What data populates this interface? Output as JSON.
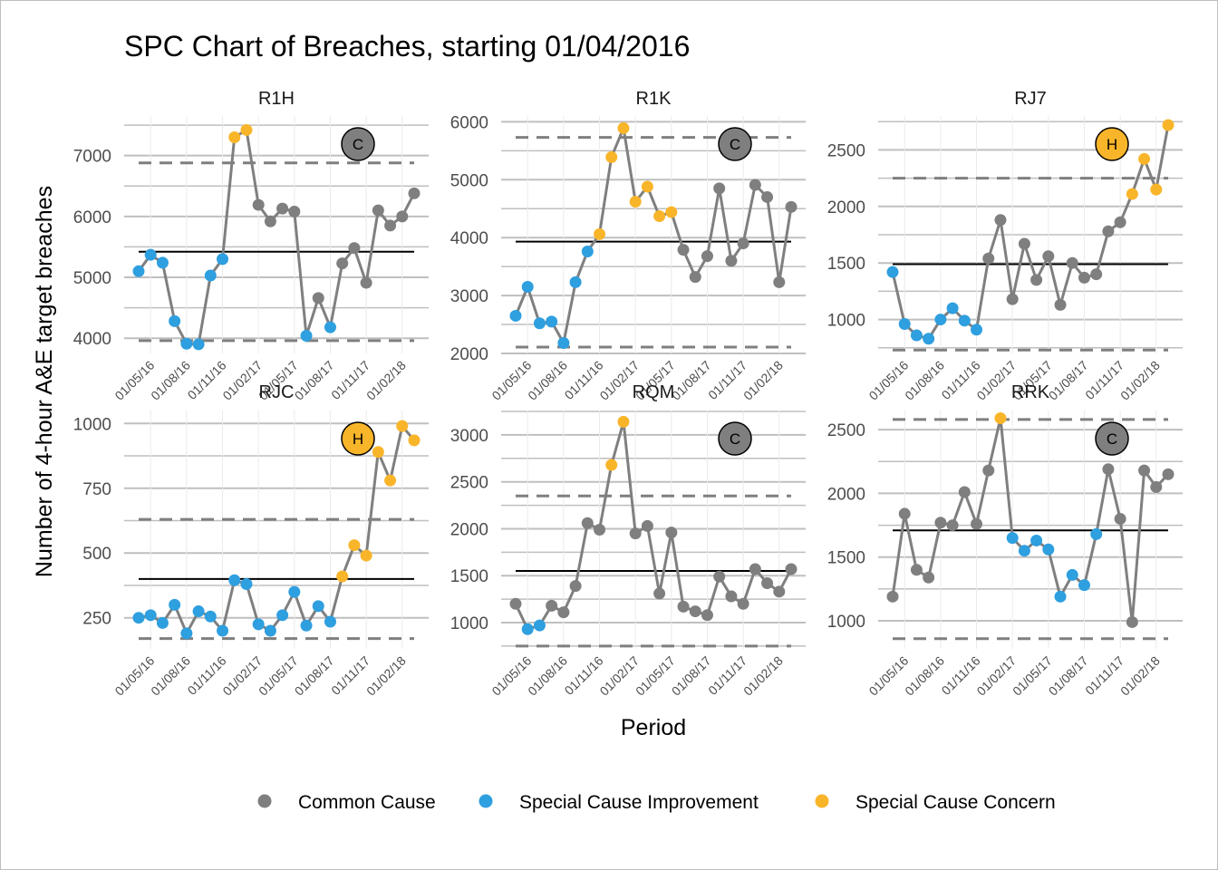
{
  "title": "SPC Chart of Breaches, starting 01/04/2016",
  "y_axis_title": "Number of 4-hour A&E target breaches",
  "x_axis_title": "Period",
  "legend": [
    {
      "label": "Common Cause",
      "color": "#7f7f7f"
    },
    {
      "label": "Special Cause Improvement",
      "color": "#2e9fdf"
    },
    {
      "label": "Special Cause Concern",
      "color": "#f9b52a"
    }
  ],
  "colors": {
    "C": "#7f7f7f",
    "I": "#2e9fdf",
    "K": "#f9b52a",
    "line": "#7f7f7f",
    "mean": "#000000",
    "limit": "#7f7f7f",
    "grid": "#bfbfbf"
  },
  "chart_data": [
    {
      "type": "line",
      "name": "R1H",
      "badge": "C",
      "badge_color": "#7f7f7f",
      "ylim": [
        3750,
        7650
      ],
      "yticks": [
        4000,
        5000,
        6000,
        7000
      ],
      "x": [
        "01/04/16",
        "01/05/16",
        "01/06/16",
        "01/07/16",
        "01/08/16",
        "01/09/16",
        "01/10/16",
        "01/11/16",
        "01/12/16",
        "01/01/17",
        "01/02/17",
        "01/03/17",
        "01/04/17",
        "01/05/17",
        "01/06/17",
        "01/07/17",
        "01/08/17",
        "01/09/17",
        "01/10/17",
        "01/11/17",
        "01/12/17",
        "01/01/18",
        "01/02/18",
        "01/03/18"
      ],
      "xticks": [
        "01/05/16",
        "01/08/16",
        "01/11/16",
        "01/02/17",
        "01/05/17",
        "01/08/17",
        "01/11/17",
        "01/02/18"
      ],
      "values": [
        5100,
        5370,
        5240,
        4280,
        3910,
        3900,
        5030,
        5300,
        7300,
        7420,
        6190,
        5920,
        6130,
        6080,
        4040,
        4660,
        4180,
        5230,
        5480,
        4910,
        6100,
        5850,
        6000,
        6380
      ],
      "status": [
        "I",
        "I",
        "I",
        "I",
        "I",
        "I",
        "I",
        "I",
        "K",
        "K",
        "C",
        "C",
        "C",
        "C",
        "I",
        "C",
        "I",
        "C",
        "C",
        "C",
        "C",
        "C",
        "C",
        "C"
      ],
      "mean": 5420,
      "ucl": 6880,
      "lcl": 3960
    },
    {
      "type": "line",
      "name": "R1K",
      "badge": "C",
      "badge_color": "#7f7f7f",
      "ylim": [
        2000,
        6100
      ],
      "yticks": [
        2000,
        3000,
        4000,
        5000,
        6000
      ],
      "x": [
        "01/04/16",
        "01/05/16",
        "01/06/16",
        "01/07/16",
        "01/08/16",
        "01/09/16",
        "01/10/16",
        "01/11/16",
        "01/12/16",
        "01/01/17",
        "01/02/17",
        "01/03/17",
        "01/04/17",
        "01/05/17",
        "01/06/17",
        "01/07/17",
        "01/08/17",
        "01/09/17",
        "01/10/17",
        "01/11/17",
        "01/12/17",
        "01/01/18",
        "01/02/18",
        "01/03/18"
      ],
      "xticks": [
        "01/05/16",
        "01/08/16",
        "01/11/16",
        "01/02/17",
        "01/05/17",
        "01/08/17",
        "01/11/17",
        "01/02/18"
      ],
      "values": [
        2650,
        3150,
        2520,
        2550,
        2180,
        3230,
        3760,
        4060,
        5390,
        5890,
        4620,
        4880,
        4370,
        4440,
        3790,
        3320,
        3680,
        4850,
        3600,
        3900,
        4910,
        4700,
        3230,
        4530
      ],
      "status": [
        "I",
        "I",
        "I",
        "I",
        "I",
        "I",
        "I",
        "K",
        "K",
        "K",
        "K",
        "K",
        "K",
        "K",
        "C",
        "C",
        "C",
        "C",
        "C",
        "C",
        "C",
        "C",
        "C",
        "C"
      ],
      "mean": 3930,
      "ucl": 5730,
      "lcl": 2110
    },
    {
      "type": "line",
      "name": "RJ7",
      "badge": "H",
      "badge_color": "#f9b52a",
      "ylim": [
        700,
        2800
      ],
      "yticks": [
        1000,
        1500,
        2000,
        2500
      ],
      "x": [
        "01/04/16",
        "01/05/16",
        "01/06/16",
        "01/07/16",
        "01/08/16",
        "01/09/16",
        "01/10/16",
        "01/11/16",
        "01/12/16",
        "01/01/17",
        "01/02/17",
        "01/03/17",
        "01/04/17",
        "01/05/17",
        "01/06/17",
        "01/07/17",
        "01/08/17",
        "01/09/17",
        "01/10/17",
        "01/11/17",
        "01/12/17",
        "01/01/18",
        "01/02/18",
        "01/03/18"
      ],
      "xticks": [
        "01/05/16",
        "01/08/16",
        "01/11/16",
        "01/02/17",
        "01/05/17",
        "01/08/17",
        "01/11/17",
        "01/02/18"
      ],
      "values": [
        1420,
        960,
        860,
        830,
        1000,
        1100,
        990,
        910,
        1540,
        1880,
        1180,
        1670,
        1350,
        1560,
        1130,
        1500,
        1370,
        1400,
        1780,
        1860,
        2110,
        2420,
        2150,
        2720
      ],
      "status": [
        "I",
        "I",
        "I",
        "I",
        "I",
        "I",
        "I",
        "I",
        "C",
        "C",
        "C",
        "C",
        "C",
        "C",
        "C",
        "C",
        "C",
        "C",
        "C",
        "C",
        "K",
        "K",
        "K",
        "K"
      ],
      "mean": 1490,
      "ucl": 2250,
      "lcl": 730
    },
    {
      "type": "line",
      "name": "RJC",
      "badge": "H",
      "badge_color": "#f9b52a",
      "ylim": [
        130,
        1050
      ],
      "yticks": [
        250,
        500,
        750,
        1000
      ],
      "x": [
        "01/04/16",
        "01/05/16",
        "01/06/16",
        "01/07/16",
        "01/08/16",
        "01/09/16",
        "01/10/16",
        "01/11/16",
        "01/12/16",
        "01/01/17",
        "01/02/17",
        "01/03/17",
        "01/04/17",
        "01/05/17",
        "01/06/17",
        "01/07/17",
        "01/08/17",
        "01/09/17",
        "01/10/17",
        "01/11/17",
        "01/12/17",
        "01/01/18",
        "01/02/18",
        "01/03/18"
      ],
      "xticks": [
        "01/05/16",
        "01/08/16",
        "01/11/16",
        "01/02/17",
        "01/05/17",
        "01/08/17",
        "01/11/17",
        "01/02/18"
      ],
      "values": [
        250,
        260,
        230,
        300,
        190,
        275,
        255,
        200,
        395,
        380,
        225,
        200,
        260,
        350,
        220,
        295,
        235,
        410,
        530,
        490,
        890,
        780,
        990,
        935
      ],
      "status": [
        "I",
        "I",
        "I",
        "I",
        "I",
        "I",
        "I",
        "I",
        "I",
        "I",
        "I",
        "I",
        "I",
        "I",
        "I",
        "I",
        "I",
        "K",
        "K",
        "K",
        "K",
        "K",
        "K",
        "K"
      ],
      "mean": 400,
      "ucl": 630,
      "lcl": 170
    },
    {
      "type": "line",
      "name": "RQM",
      "badge": "C",
      "badge_color": "#7f7f7f",
      "ylim": [
        720,
        3260
      ],
      "yticks": [
        1000,
        1500,
        2000,
        2500,
        3000
      ],
      "x": [
        "01/04/16",
        "01/05/16",
        "01/06/16",
        "01/07/16",
        "01/08/16",
        "01/09/16",
        "01/10/16",
        "01/11/16",
        "01/12/16",
        "01/01/17",
        "01/02/17",
        "01/03/17",
        "01/04/17",
        "01/05/17",
        "01/06/17",
        "01/07/17",
        "01/08/17",
        "01/09/17",
        "01/10/17",
        "01/11/17",
        "01/12/17",
        "01/01/18",
        "01/02/18",
        "01/03/18"
      ],
      "xticks": [
        "01/05/16",
        "01/08/16",
        "01/11/16",
        "01/02/17",
        "01/05/17",
        "01/08/17",
        "01/11/17",
        "01/02/18"
      ],
      "values": [
        1200,
        930,
        970,
        1180,
        1110,
        1390,
        2060,
        1990,
        2680,
        3140,
        1950,
        2030,
        1310,
        1960,
        1170,
        1120,
        1080,
        1490,
        1280,
        1200,
        1570,
        1420,
        1330,
        1570
      ],
      "status": [
        "C",
        "I",
        "I",
        "C",
        "C",
        "C",
        "C",
        "C",
        "K",
        "K",
        "C",
        "C",
        "C",
        "C",
        "C",
        "C",
        "C",
        "C",
        "C",
        "C",
        "C",
        "C",
        "C",
        "C"
      ],
      "mean": 1550,
      "ucl": 2350,
      "lcl": 750
    },
    {
      "type": "line",
      "name": "RRK",
      "badge": "C",
      "badge_color": "#7f7f7f",
      "ylim": [
        780,
        2650
      ],
      "yticks": [
        1000,
        1500,
        2000,
        2500
      ],
      "x": [
        "01/04/16",
        "01/05/16",
        "01/06/16",
        "01/07/16",
        "01/08/16",
        "01/09/16",
        "01/10/16",
        "01/11/16",
        "01/12/16",
        "01/01/17",
        "01/02/17",
        "01/03/17",
        "01/04/17",
        "01/05/17",
        "01/06/17",
        "01/07/17",
        "01/08/17",
        "01/09/17",
        "01/10/17",
        "01/11/17",
        "01/12/17",
        "01/01/18",
        "01/02/18",
        "01/03/18"
      ],
      "xticks": [
        "01/05/16",
        "01/08/16",
        "01/11/16",
        "01/02/17",
        "01/05/17",
        "01/08/17",
        "01/11/17",
        "01/02/18"
      ],
      "values": [
        1190,
        1840,
        1400,
        1340,
        1770,
        1750,
        2010,
        1760,
        2180,
        2590,
        1650,
        1550,
        1630,
        1560,
        1190,
        1360,
        1280,
        1680,
        2190,
        1800,
        990,
        2180,
        2050,
        2150
      ],
      "status": [
        "C",
        "C",
        "C",
        "C",
        "C",
        "C",
        "C",
        "C",
        "C",
        "K",
        "I",
        "I",
        "I",
        "I",
        "I",
        "I",
        "I",
        "I",
        "C",
        "C",
        "C",
        "C",
        "C",
        "C"
      ],
      "mean": 1710,
      "ucl": 2580,
      "lcl": 860
    }
  ]
}
